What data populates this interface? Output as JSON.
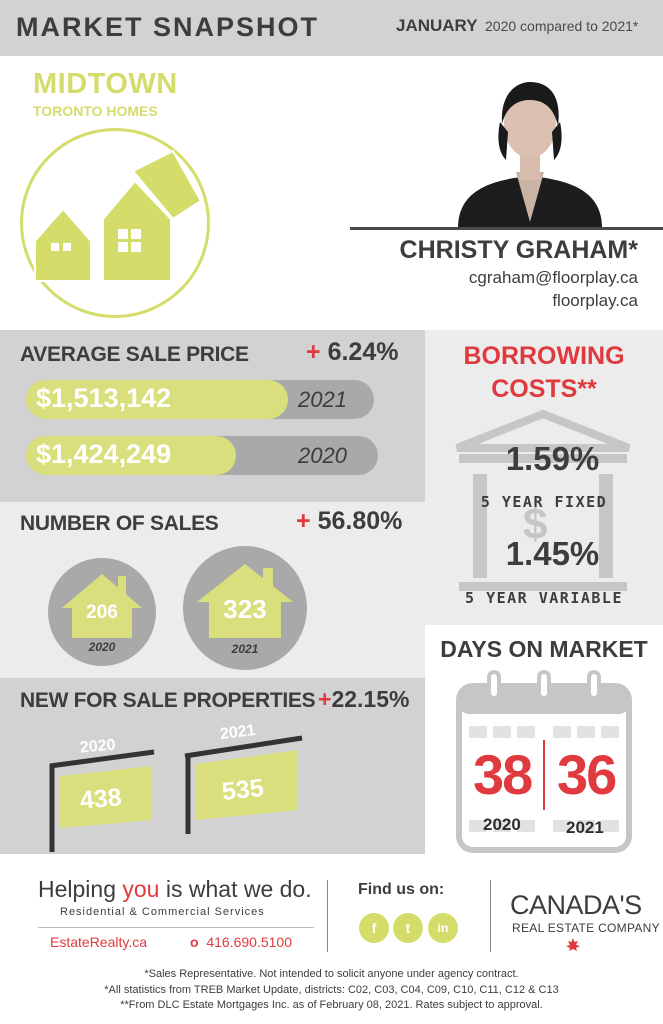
{
  "header": {
    "title": "MARKET SNAPSHOT",
    "month": "JANUARY",
    "compare": "2020 compared to 2021*"
  },
  "area": {
    "name": "MIDTOWN",
    "subtitle": "TORONTO HOMES"
  },
  "agent": {
    "name": "CHRISTY GRAHAM*",
    "email": "cgraham@floorplay.ca",
    "website": "floorplay.ca"
  },
  "average_sale_price": {
    "title": "AVERAGE SALE PRICE",
    "plus": "+",
    "change": "6.24%",
    "rows": [
      {
        "value": "$1,513,142",
        "year": "2021",
        "fill": 0.7
      },
      {
        "value": "$1,424,249",
        "year": "2020",
        "fill": 0.6
      }
    ]
  },
  "number_of_sales": {
    "title": "NUMBER OF SALES",
    "plus": "+",
    "change": "56.80%",
    "items": [
      {
        "value": "206",
        "year": "2020"
      },
      {
        "value": "323",
        "year": "2021"
      }
    ]
  },
  "new_for_sale": {
    "title": "NEW FOR SALE PROPERTIES",
    "plus": "+",
    "change": "22.15%",
    "items": [
      {
        "value": "438",
        "year": "2020"
      },
      {
        "value": "535",
        "year": "2021"
      }
    ]
  },
  "borrowing": {
    "title_line1": "BORROWING",
    "title_line2": "COSTS**",
    "rate1": "1.59%",
    "label1": "5 YEAR FIXED",
    "rate2": "1.45%",
    "label2": "5 YEAR VARIABLE",
    "symbol": "$"
  },
  "days_on_market": {
    "title": "DAYS ON MARKET",
    "value_2020": "38",
    "value_2021": "36",
    "year_2020": "2020",
    "year_2021": "2021"
  },
  "footer": {
    "tagline_pre": "Helping ",
    "tagline_you": "you",
    "tagline_post": " is what we do.",
    "services": "Residential & Commercial Services",
    "site": "EstateRealty.ca",
    "phone": "416.690.5100",
    "find_us": "Find us on:",
    "social": [
      {
        "icon": "facebook-icon",
        "glyph": "f"
      },
      {
        "icon": "twitter-icon",
        "glyph": "t"
      },
      {
        "icon": "linkedin-icon",
        "glyph": "in"
      }
    ],
    "brand_line1": "CANADA'S",
    "brand_line2": "REAL ESTATE COMPANY",
    "notes": [
      "*Sales Representative. Not intended to solicit anyone under agency contract.",
      "*All statistics from TREB Market Update, districts: C02, C03, C04, C09, C10, C11, C12 & C13",
      "**From DLC Estate Mortgages Inc. as of February 08, 2021. Rates subject to approval."
    ]
  },
  "colors": {
    "accent_green": "#d4dc6a",
    "accent_red": "#e03a3e",
    "panel_gray": "#d2d2d2",
    "panel_light": "#ececec"
  }
}
